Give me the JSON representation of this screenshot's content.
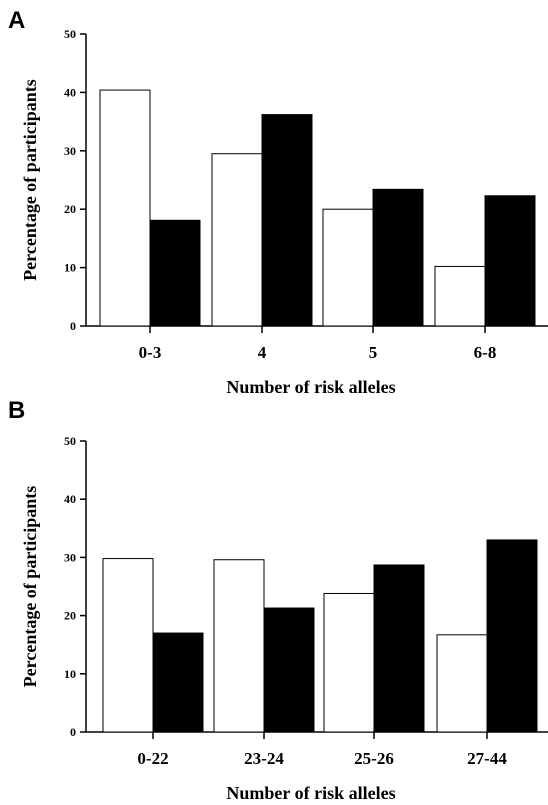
{
  "chart_data": [
    {
      "type": "bar",
      "panel_label": "A",
      "categories": [
        "0-3",
        "4",
        "5",
        "6-8"
      ],
      "series": [
        {
          "color": "#ffffff",
          "values": [
            40.4,
            29.5,
            20.0,
            10.2
          ]
        },
        {
          "color": "#000000",
          "values": [
            18.1,
            36.2,
            23.4,
            22.3
          ]
        }
      ],
      "xlabel": "Number of risk alleles",
      "ylabel": "Percentage of participants",
      "ylim": [
        0,
        50
      ],
      "yticks": [
        "0",
        "10",
        "20",
        "30",
        "40",
        "50"
      ],
      "grid": false,
      "legend": "none"
    },
    {
      "type": "bar",
      "panel_label": "B",
      "categories": [
        "0-22",
        "23-24",
        "25-26",
        "27-44"
      ],
      "series": [
        {
          "color": "#ffffff",
          "values": [
            29.8,
            29.6,
            23.8,
            16.7
          ]
        },
        {
          "color": "#000000",
          "values": [
            17.0,
            21.3,
            28.7,
            33.0
          ]
        }
      ],
      "xlabel": "Number of risk alleles",
      "ylabel": "Percentage of participants",
      "ylim": [
        0,
        50
      ],
      "yticks": [
        "0",
        "10",
        "20",
        "30",
        "40",
        "50"
      ],
      "grid": false,
      "legend": "none"
    }
  ]
}
